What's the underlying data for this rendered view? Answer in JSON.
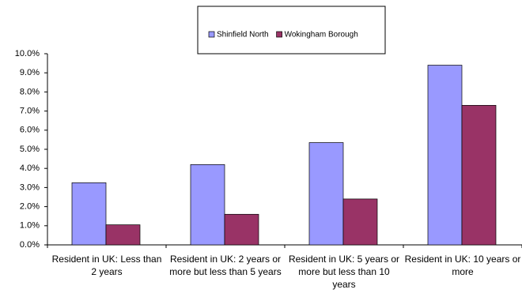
{
  "chart_data": {
    "type": "bar",
    "categories": [
      "Resident in UK: Less than 2 years",
      "Resident in UK: 2 years or more but less than 5 years",
      "Resident in UK: 5 years or more but less than 10 years",
      "Resident in UK: 10 years or more"
    ],
    "series": [
      {
        "name": "Shinfield North",
        "color": "#9999ff",
        "values": [
          3.25,
          4.2,
          5.35,
          9.4
        ]
      },
      {
        "name": "Wokingham Borough",
        "color": "#993366",
        "values": [
          1.05,
          1.6,
          2.4,
          7.3
        ]
      }
    ],
    "ylim": [
      0,
      10
    ],
    "yticks": [
      {
        "value": 0,
        "label": "0.0%"
      },
      {
        "value": 1,
        "label": "1.0%"
      },
      {
        "value": 2,
        "label": "2.0%"
      },
      {
        "value": 3,
        "label": "3.0%"
      },
      {
        "value": 4,
        "label": "4.0%"
      },
      {
        "value": 5,
        "label": "5.0%"
      },
      {
        "value": 6,
        "label": "6.0%"
      },
      {
        "value": 7,
        "label": "7.0%"
      },
      {
        "value": 8,
        "label": "8.0%"
      },
      {
        "value": 9,
        "label": "9.0%"
      },
      {
        "value": 10,
        "label": "10.0%"
      }
    ],
    "grid": false,
    "legend": "top"
  }
}
